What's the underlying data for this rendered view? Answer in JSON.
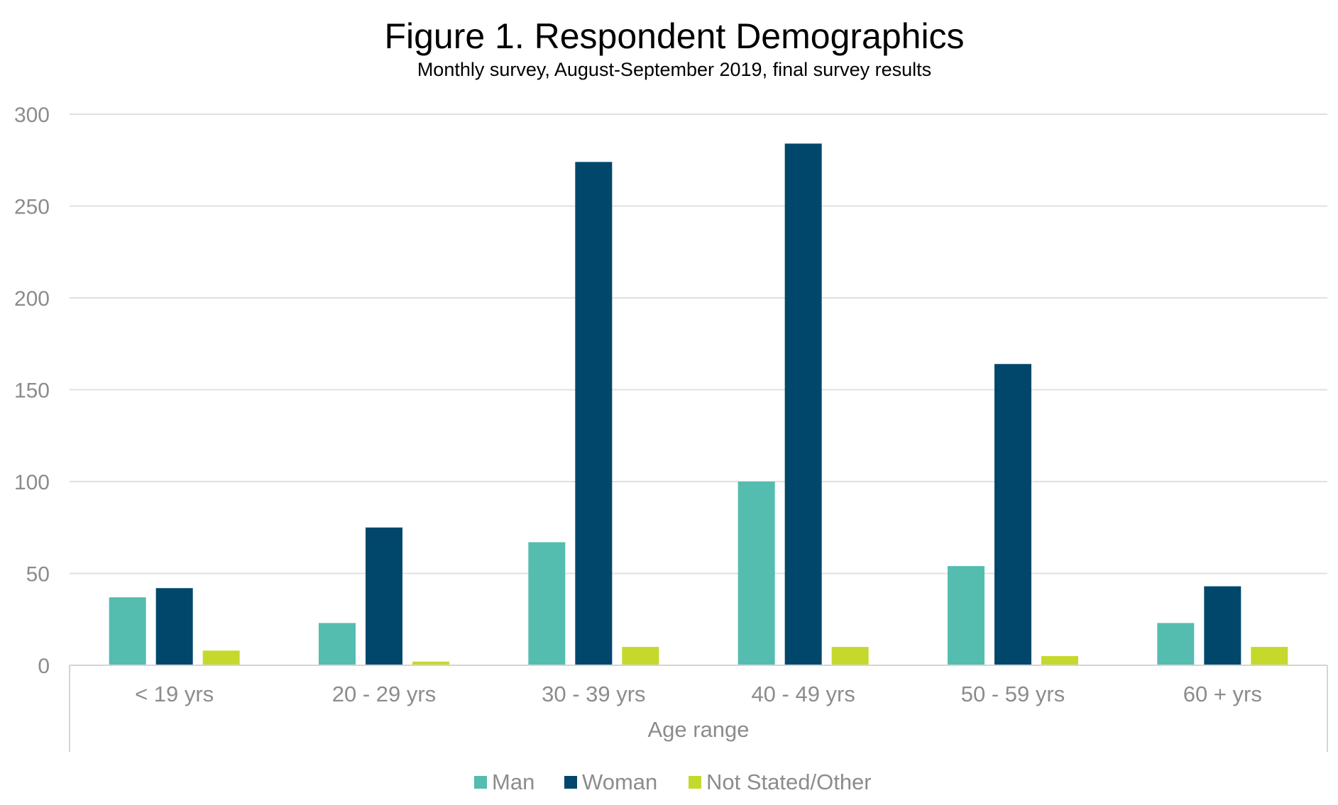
{
  "chart_data": {
    "type": "bar",
    "title": "Figure 1. Respondent Demographics",
    "subtitle": "Monthly survey, August-September 2019, final survey results",
    "xlabel": "Age range",
    "ylabel": "",
    "ylim": [
      0,
      300
    ],
    "yticks": [
      "0",
      "50",
      "100",
      "150",
      "200",
      "250",
      "300"
    ],
    "categories": [
      "< 19 yrs",
      "20 - 29 yrs",
      "30 - 39 yrs",
      "40 - 49 yrs",
      "50 - 59 yrs",
      "60 + yrs"
    ],
    "series": [
      {
        "name": "Man",
        "color": "#55bcb0",
        "values": [
          37,
          23,
          67,
          100,
          54,
          23
        ]
      },
      {
        "name": "Woman",
        "color": "#00476b",
        "values": [
          42,
          75,
          274,
          284,
          164,
          43
        ]
      },
      {
        "name": "Not Stated/Other",
        "color": "#c5d92d",
        "values": [
          8,
          2,
          10,
          10,
          5,
          10
        ]
      }
    ],
    "grid": true,
    "legend": "bottom-center"
  }
}
